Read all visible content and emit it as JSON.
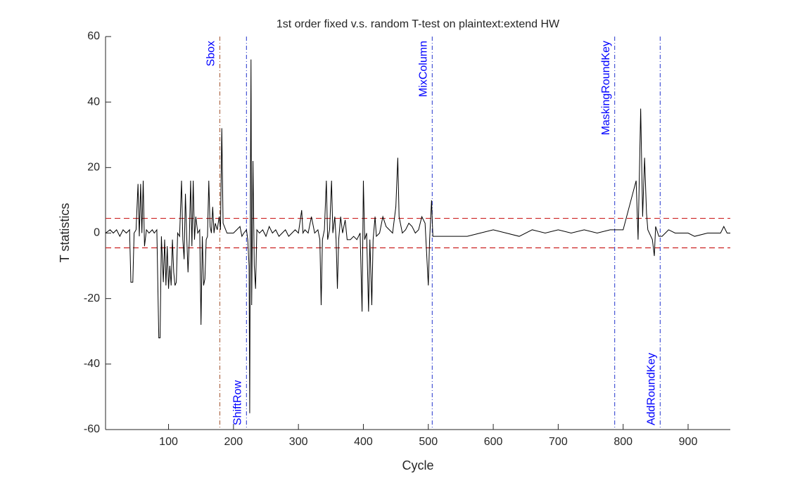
{
  "chart_data": {
    "type": "line",
    "title": "1st order fixed v.s. random T-test on plaintext:extend HW",
    "x_label": "Cycle",
    "y_label": "T statistics",
    "xlim": [
      3,
      965
    ],
    "ylim": [
      -60,
      60
    ],
    "xticks": [
      100,
      200,
      300,
      400,
      500,
      600,
      700,
      800,
      900
    ],
    "yticks": [
      -60,
      -40,
      -20,
      0,
      20,
      40,
      60
    ],
    "x": [
      3,
      10,
      15,
      20,
      25,
      30,
      35,
      40,
      42,
      45,
      47,
      50,
      53,
      55,
      57,
      59,
      61,
      63,
      66,
      70,
      75,
      78,
      82,
      85,
      87,
      89,
      92,
      94,
      96,
      98,
      100,
      102,
      104,
      106,
      108,
      110,
      112,
      114,
      117,
      120,
      122,
      124,
      126,
      128,
      130,
      132,
      134,
      136,
      138,
      140,
      142,
      145,
      148,
      150,
      152,
      154,
      156,
      158,
      160,
      162,
      164,
      166,
      168,
      170,
      172,
      175,
      178,
      180,
      182,
      184,
      186,
      190,
      195,
      200,
      205,
      210,
      213,
      216,
      220,
      222,
      224,
      225,
      226,
      227,
      228,
      230,
      232,
      234,
      236,
      240,
      245,
      250,
      255,
      260,
      265,
      270,
      275,
      280,
      285,
      290,
      295,
      300,
      305,
      307,
      310,
      315,
      320,
      325,
      330,
      333,
      335,
      337,
      340,
      343,
      345,
      348,
      351,
      353,
      356,
      358,
      360,
      362,
      365,
      368,
      372,
      375,
      380,
      385,
      390,
      395,
      398,
      400,
      402,
      405,
      408,
      410,
      413,
      415,
      418,
      420,
      425,
      430,
      435,
      440,
      445,
      450,
      453,
      455,
      460,
      465,
      470,
      475,
      480,
      485,
      490,
      495,
      500,
      502,
      505,
      507,
      510,
      530,
      560,
      580,
      600,
      620,
      640,
      660,
      680,
      700,
      720,
      740,
      760,
      780,
      800,
      820,
      823,
      827,
      830,
      833,
      836,
      838,
      845,
      848,
      850,
      855,
      860,
      870,
      880,
      900,
      910,
      930,
      950,
      955,
      960,
      965
    ],
    "series": [
      {
        "name": "T statistics",
        "color": "#000000",
        "values": [
          0,
          1,
          0,
          1,
          -1,
          1,
          0,
          1,
          -15,
          -15,
          0,
          1,
          15,
          -1,
          15,
          0,
          16,
          -4,
          1,
          0,
          1,
          0,
          1,
          -32,
          -32,
          -1,
          -15,
          -2,
          -16,
          -4,
          -17,
          -10,
          -16,
          -2,
          -12,
          -16,
          -15,
          0,
          -1,
          16,
          -2,
          -8,
          12,
          -1,
          -12,
          -2,
          16,
          -4,
          16,
          -2,
          5,
          0,
          1,
          -28,
          -1,
          -16,
          -14,
          -2,
          -1,
          16,
          2,
          0,
          8,
          0,
          3,
          1,
          5,
          1,
          32,
          3,
          2,
          0,
          0,
          0,
          1,
          2,
          -1,
          0,
          1,
          -2,
          -10,
          -55,
          10,
          53,
          -22,
          22,
          -10,
          -17,
          1,
          0,
          1,
          -1,
          2,
          0,
          1,
          -1,
          0,
          1,
          -1,
          0,
          1,
          0,
          7,
          0,
          1,
          0,
          5,
          0,
          1,
          -2,
          -22,
          -2,
          1,
          16,
          -2,
          1,
          16,
          0,
          5,
          -2,
          -17,
          -2,
          5,
          0,
          4,
          -2,
          -2,
          -1,
          -2,
          0,
          -24,
          16,
          -2,
          0,
          -24,
          -2,
          -22,
          -2,
          5,
          -1,
          0,
          5,
          2,
          1,
          0,
          8,
          23,
          5,
          0,
          1,
          3,
          2,
          0,
          1,
          5,
          3,
          -16,
          -2,
          10,
          -1,
          -1,
          -1,
          -1,
          0,
          1,
          0,
          -1,
          1,
          0,
          1,
          0,
          1,
          0,
          1,
          1,
          16,
          -2,
          38,
          5,
          23,
          6,
          1,
          -2,
          -7,
          2,
          -1,
          -1,
          1,
          0,
          0,
          -1,
          0,
          0,
          2,
          0,
          0
        ]
      }
    ],
    "hlines": [
      {
        "value": 4.5,
        "color": "#cc2222"
      },
      {
        "value": -4.5,
        "color": "#cc2222"
      }
    ],
    "markers": [
      {
        "label": "Sbox",
        "x": 179,
        "color": "#a0522d",
        "position": "top"
      },
      {
        "label": "ShiftRow",
        "x": 220,
        "color": "#2233cc",
        "position": "bottom"
      },
      {
        "label": "MixColumn",
        "x": 506,
        "color": "#2233cc",
        "position": "top"
      },
      {
        "label": "MaskingRoundKey",
        "x": 787,
        "color": "#2233cc",
        "position": "top"
      },
      {
        "label": "AddRoundKey",
        "x": 857,
        "color": "#2233cc",
        "position": "bottom"
      }
    ],
    "marker_label_color": "#0000ff"
  }
}
